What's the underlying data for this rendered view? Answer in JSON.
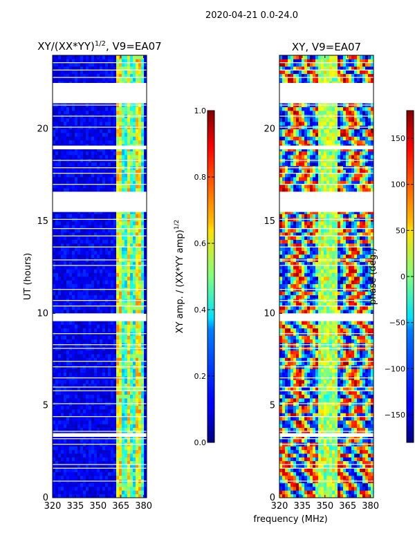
{
  "suptitle": "2020-04-21 0.0-24.0",
  "xlabel_shared": "frequency (MHz)",
  "chart_data": [
    {
      "type": "heatmap",
      "title_main": "XY/(XX*YY)",
      "title_exp": "1/2",
      "title_rest": ", V9=EA07",
      "xlabel": "",
      "ylabel": "UT (hours)",
      "xlim": [
        320,
        382
      ],
      "ylim": [
        0,
        24
      ],
      "xticks": [
        320,
        335,
        350,
        365,
        380
      ],
      "yticks": [
        0,
        5,
        10,
        15,
        20
      ],
      "colormap": "jet",
      "gaps_hours": [
        [
          21.4,
          22.5
        ],
        [
          15.5,
          16.6
        ],
        [
          9.6,
          10.0
        ],
        [
          18.9,
          19.1
        ],
        [
          3.3,
          3.5
        ]
      ],
      "colorbar": {
        "label_main": "XY amp. / (XX*YY amp)",
        "label_exp": "1/2",
        "range": [
          0.0,
          1.0
        ],
        "ticks": [
          "0.0",
          "0.2",
          "0.4",
          "0.6",
          "0.8",
          "1.0"
        ]
      }
    },
    {
      "type": "heatmap",
      "title_main": "XY, V9=EA07",
      "xlabel": "frequency (MHz)",
      "ylabel": "",
      "xlim": [
        320,
        382
      ],
      "ylim": [
        0,
        24
      ],
      "xticks": [
        320,
        335,
        350,
        365,
        380
      ],
      "yticks": [
        0,
        5,
        10,
        15,
        20
      ],
      "colormap": "jet",
      "gaps_hours": [
        [
          21.4,
          22.5
        ],
        [
          15.5,
          16.6
        ],
        [
          9.6,
          10.0
        ],
        [
          18.9,
          19.1
        ],
        [
          3.3,
          3.5
        ]
      ],
      "colorbar": {
        "label": "phase (deg.)",
        "range": [
          -180,
          180
        ],
        "ticks": [
          "−150",
          "−100",
          "−50",
          "0",
          "50",
          "100",
          "150"
        ]
      }
    }
  ],
  "colors": {
    "jet_low": "#00007f",
    "jet_mid": "#7fff7f",
    "jet_high": "#7f0000",
    "frame": "#000000"
  }
}
